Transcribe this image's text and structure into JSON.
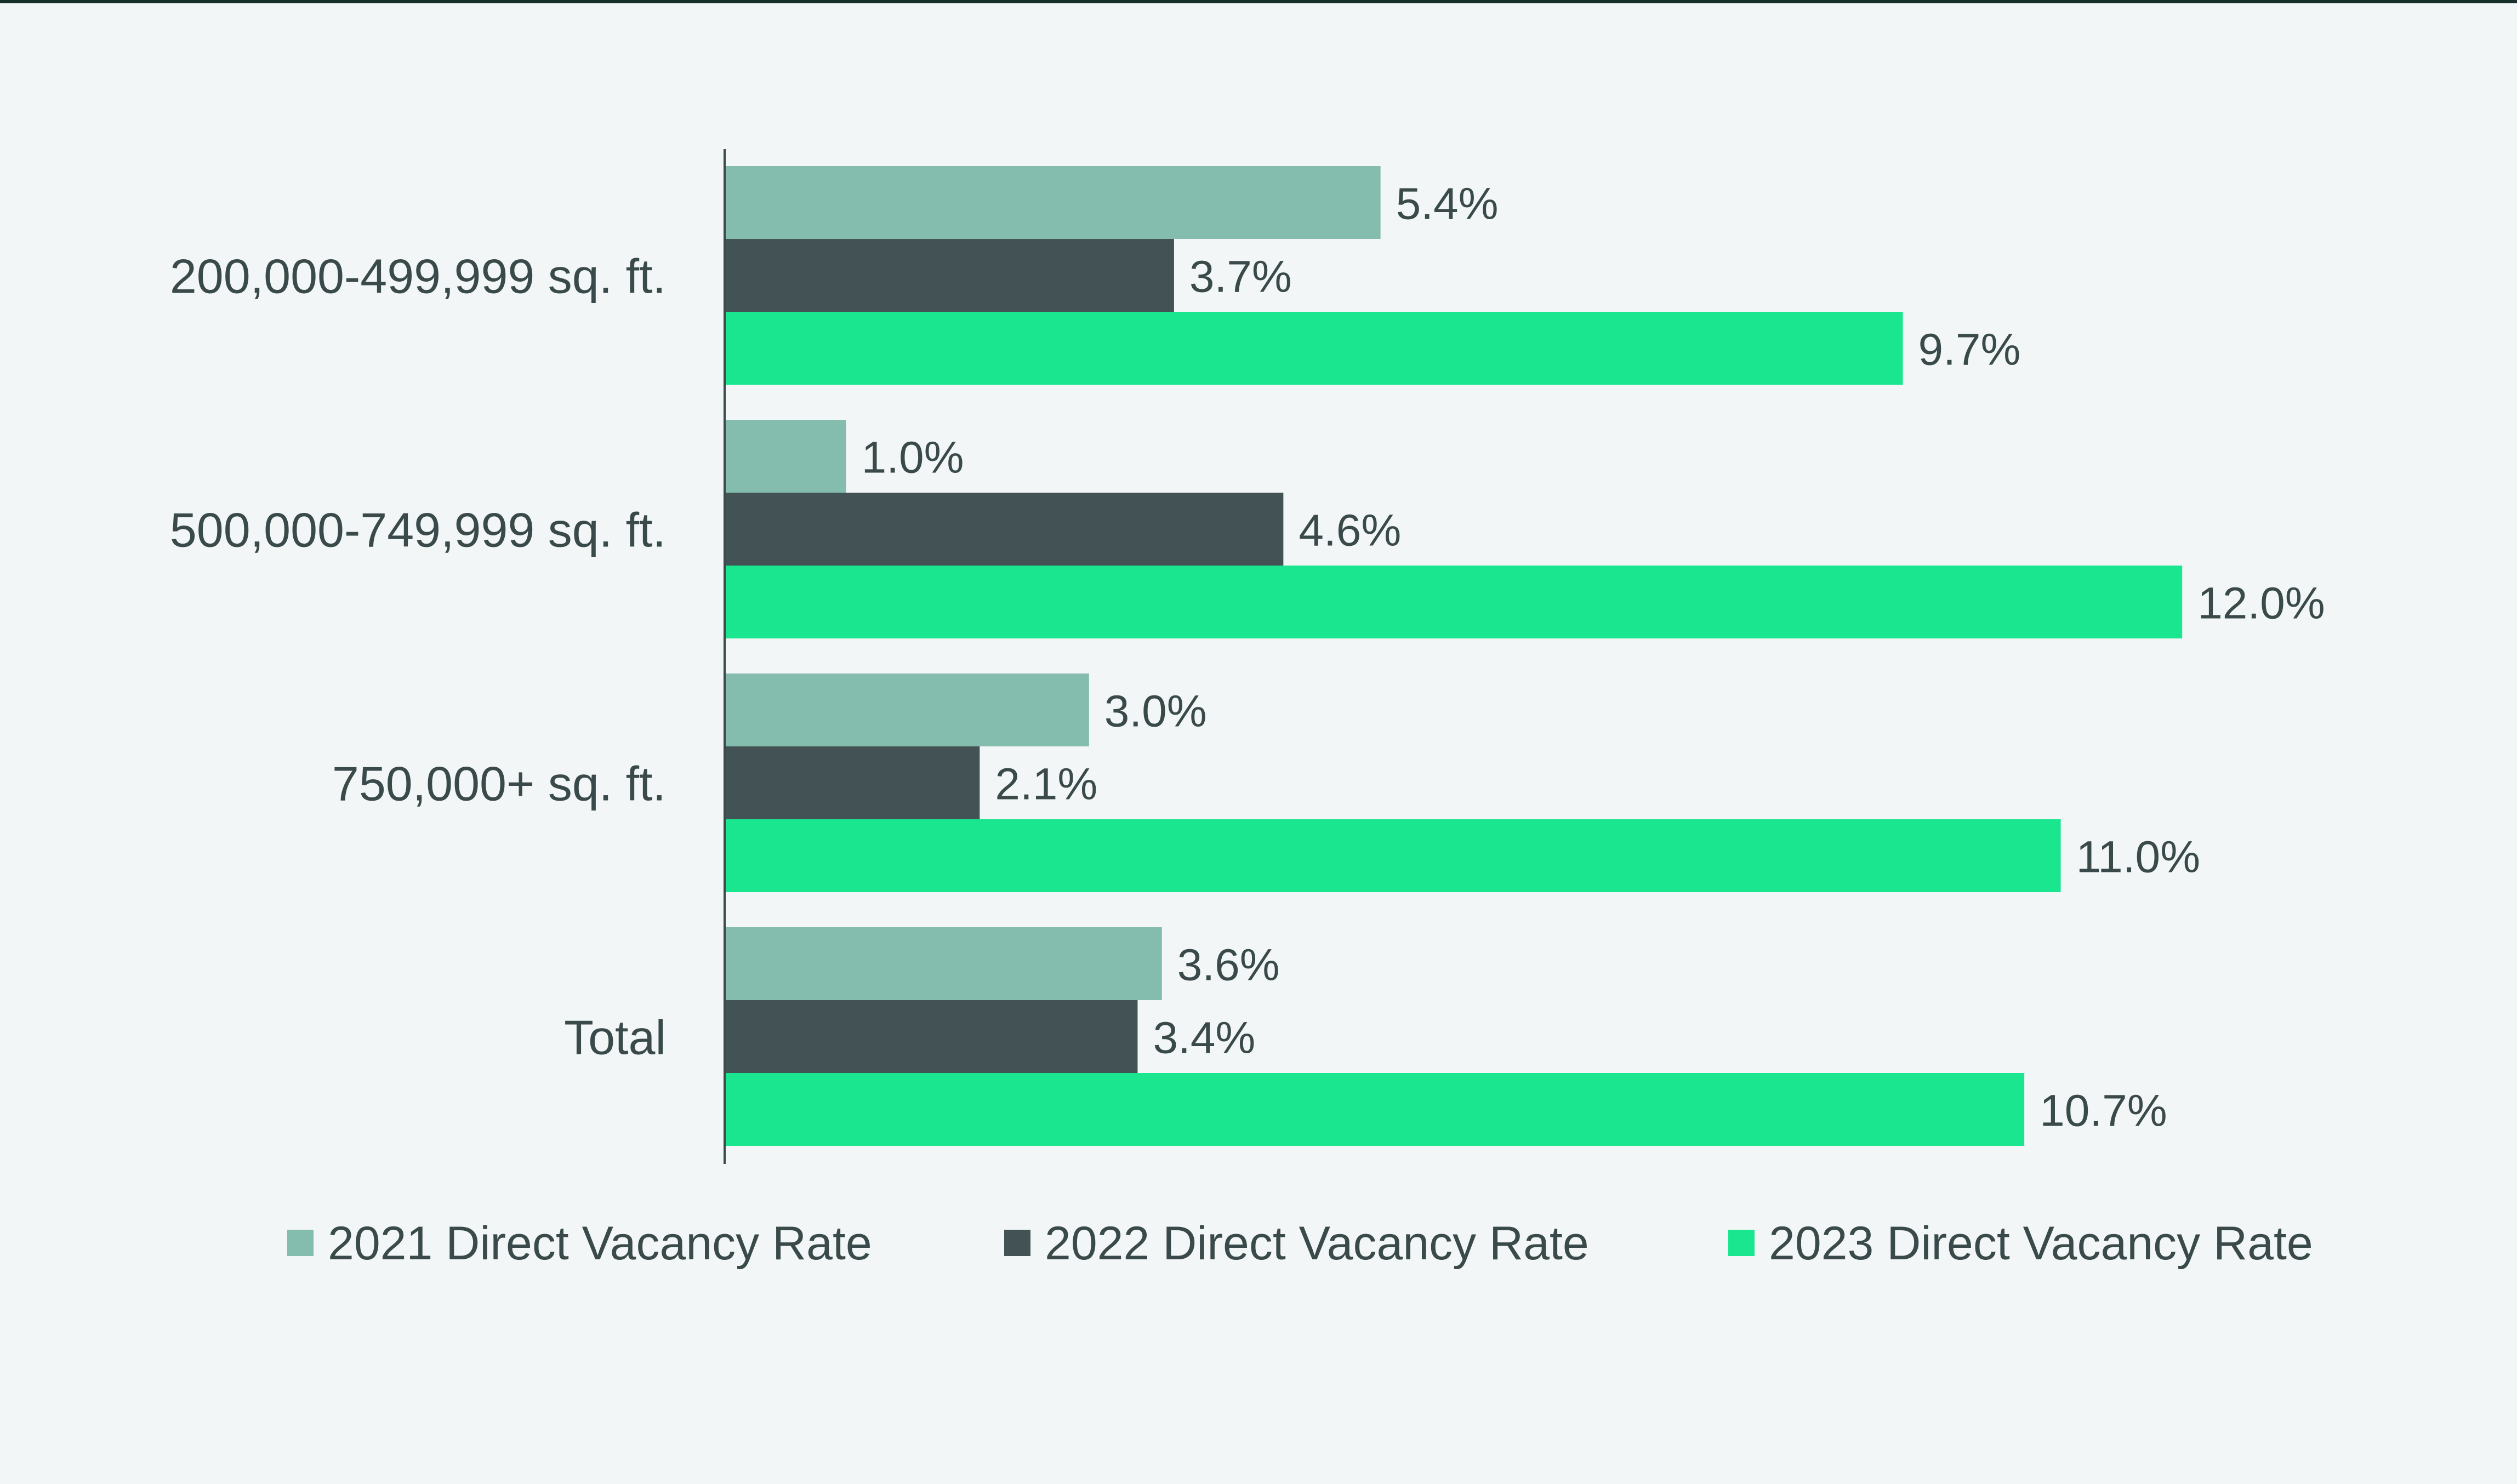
{
  "chart_data": {
    "type": "bar",
    "orientation": "horizontal",
    "title": "",
    "xlabel": "",
    "ylabel": "",
    "categories": [
      "200,000-499,999 sq. ft.",
      "500,000-749,999 sq. ft.",
      "750,000+ sq. ft.",
      "Total"
    ],
    "series": [
      {
        "name": "2021 Direct Vacancy Rate",
        "values": [
          5.4,
          1.0,
          3.0,
          3.6
        ],
        "labels": [
          "5.4%",
          "1.0%",
          "3.0%",
          "3.6%"
        ],
        "color": "#84bcad"
      },
      {
        "name": "2022 Direct Vacancy Rate",
        "values": [
          3.7,
          4.6,
          2.1,
          3.4
        ],
        "labels": [
          "3.7%",
          "4.6%",
          "2.1%",
          "3.4%"
        ],
        "color": "#435254"
      },
      {
        "name": "2023 Direct Vacancy Rate",
        "values": [
          9.7,
          12.0,
          11.0,
          10.7
        ],
        "labels": [
          "9.7%",
          "12.0%",
          "11.0%",
          "10.7%"
        ],
        "color": "#19e68f"
      }
    ],
    "xlim": [
      0,
      12.0
    ],
    "grid": false,
    "legend_position": "bottom",
    "value_axis_visible": false
  },
  "colors": {
    "background": "#f2f6f6",
    "top_rule": "#17302c",
    "text": "#3a4a4a",
    "axis": "#3a4a4a"
  }
}
